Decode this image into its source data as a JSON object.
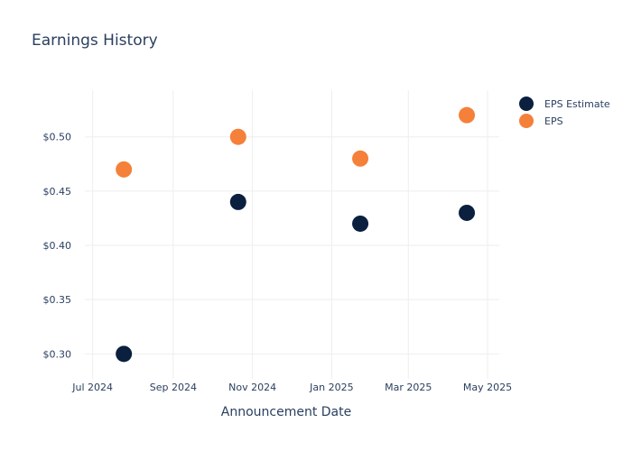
{
  "chart_data": {
    "type": "scatter",
    "title": "Earnings History",
    "xlabel": "Announcement Date",
    "ylabel": "",
    "x_ticks": [
      {
        "date": "2024-07-01",
        "label": "Jul 2024"
      },
      {
        "date": "2024-09-01",
        "label": "Sep 2024"
      },
      {
        "date": "2024-11-01",
        "label": "Nov 2024"
      },
      {
        "date": "2025-01-01",
        "label": "Jan 2025"
      },
      {
        "date": "2025-03-01",
        "label": "Mar 2025"
      },
      {
        "date": "2025-05-01",
        "label": "May 2025"
      }
    ],
    "y_ticks": [
      {
        "value": 0.3,
        "label": "$0.30"
      },
      {
        "value": 0.35,
        "label": "$0.35"
      },
      {
        "value": 0.4,
        "label": "$0.40"
      },
      {
        "value": 0.45,
        "label": "$0.45"
      },
      {
        "value": 0.5,
        "label": "$0.50"
      }
    ],
    "xlim": [
      "2024-06-25",
      "2025-05-10"
    ],
    "ylim": [
      0.277,
      0.543
    ],
    "grid": true,
    "legend_position": "top-right",
    "series": [
      {
        "name": "EPS Estimate",
        "color": "#0b1f3f",
        "points": [
          {
            "x": "2024-07-25",
            "y": 0.3
          },
          {
            "x": "2024-10-21",
            "y": 0.44
          },
          {
            "x": "2025-01-23",
            "y": 0.42
          },
          {
            "x": "2025-04-15",
            "y": 0.43
          }
        ]
      },
      {
        "name": "EPS",
        "color": "#f5803a",
        "points": [
          {
            "x": "2024-07-25",
            "y": 0.47
          },
          {
            "x": "2024-10-21",
            "y": 0.5
          },
          {
            "x": "2025-01-23",
            "y": 0.48
          },
          {
            "x": "2025-04-15",
            "y": 0.52
          }
        ]
      }
    ]
  }
}
